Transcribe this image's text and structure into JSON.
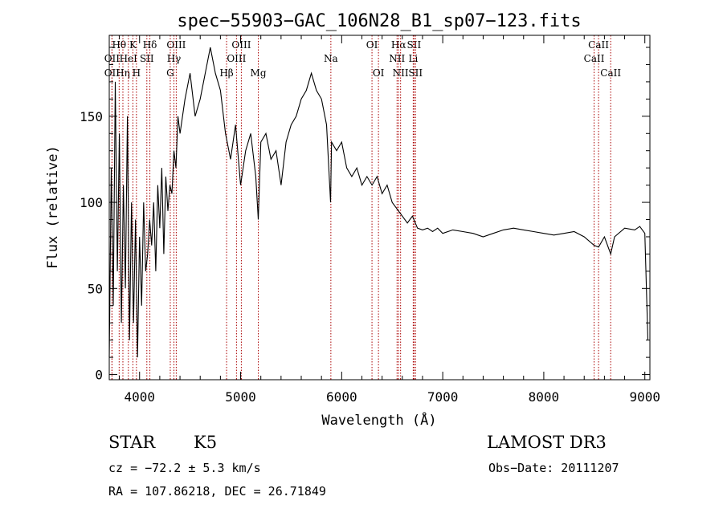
{
  "chart_data": {
    "type": "line",
    "title": "spec−55903−GAC_106N28_B1_sp07−123.fits",
    "xlabel": "Wavelength (Å)",
    "ylabel": "Flux (relative)",
    "xlim": [
      3700,
      9050
    ],
    "ylim": [
      -3,
      197
    ],
    "x_ticks": [
      4000,
      5000,
      6000,
      7000,
      8000,
      9000
    ],
    "y_ticks": [
      0,
      50,
      100,
      150
    ],
    "grid": false,
    "legend": "none",
    "line_color": "#000000",
    "marker_color": "#aa0000",
    "series": [
      {
        "x": [
          3700,
          3720,
          3740,
          3760,
          3780,
          3800,
          3820,
          3840,
          3860,
          3880,
          3900,
          3920,
          3940,
          3960,
          3980,
          4000,
          4020,
          4040,
          4060,
          4080,
          4100,
          4120,
          4140,
          4160,
          4180,
          4200,
          4220,
          4240,
          4260,
          4280,
          4300,
          4320,
          4340,
          4360,
          4380,
          4400,
          4450,
          4500,
          4550,
          4600,
          4650,
          4700,
          4750,
          4800,
          4850,
          4900,
          4950,
          5000,
          5050,
          5100,
          5150,
          5175,
          5200,
          5250,
          5300,
          5350,
          5400,
          5450,
          5500,
          5550,
          5600,
          5650,
          5700,
          5750,
          5800,
          5850,
          5890,
          5900,
          5950,
          6000,
          6050,
          6100,
          6150,
          6200,
          6250,
          6300,
          6350,
          6400,
          6450,
          6500,
          6563,
          6600,
          6650,
          6700,
          6750,
          6800,
          6850,
          6900,
          6950,
          7000,
          7100,
          7200,
          7300,
          7400,
          7500,
          7600,
          7700,
          7800,
          7900,
          8000,
          8100,
          8200,
          8300,
          8400,
          8498,
          8542,
          8600,
          8662,
          8700,
          8800,
          8900,
          8950,
          9000,
          9030
        ],
        "y": [
          10,
          120,
          40,
          170,
          60,
          140,
          30,
          110,
          50,
          150,
          20,
          100,
          30,
          90,
          10,
          80,
          40,
          100,
          60,
          70,
          90,
          75,
          100,
          60,
          110,
          85,
          120,
          70,
          115,
          95,
          110,
          105,
          130,
          120,
          150,
          140,
          160,
          175,
          150,
          160,
          175,
          190,
          175,
          165,
          140,
          125,
          145,
          110,
          130,
          140,
          115,
          90,
          135,
          140,
          125,
          130,
          110,
          135,
          145,
          150,
          160,
          165,
          175,
          165,
          160,
          145,
          100,
          135,
          130,
          135,
          120,
          115,
          120,
          110,
          115,
          110,
          115,
          105,
          110,
          100,
          95,
          92,
          88,
          92,
          85,
          84,
          85,
          83,
          85,
          82,
          84,
          83,
          82,
          80,
          82,
          84,
          85,
          84,
          83,
          82,
          81,
          82,
          83,
          80,
          75,
          74,
          80,
          70,
          80,
          85,
          84,
          86,
          82,
          20
        ],
        "name": ""
      }
    ],
    "spectral_lines": [
      {
        "label": "Hθ",
        "wave": 3798,
        "row": 1
      },
      {
        "label": "OII",
        "wave": 3727,
        "row": 2
      },
      {
        "label": "OII",
        "wave": 3727,
        "row": 3
      },
      {
        "label": "Hη",
        "wave": 3835,
        "row": 3
      },
      {
        "label": "HeI",
        "wave": 3889,
        "row": 2
      },
      {
        "label": "K",
        "wave": 3934,
        "row": 1
      },
      {
        "label": "H",
        "wave": 3969,
        "row": 3
      },
      {
        "label": "SII",
        "wave": 4072,
        "row": 2
      },
      {
        "label": "Hδ",
        "wave": 4102,
        "row": 1
      },
      {
        "label": "OIII",
        "wave": 4363,
        "row": 1
      },
      {
        "label": "Hγ",
        "wave": 4340,
        "row": 2
      },
      {
        "label": "G",
        "wave": 4304,
        "row": 3
      },
      {
        "label": "Hβ",
        "wave": 4861,
        "row": 3
      },
      {
        "label": "OIII",
        "wave": 5007,
        "row": 1
      },
      {
        "label": "OIII",
        "wave": 4959,
        "row": 2
      },
      {
        "label": "Mg",
        "wave": 5175,
        "row": 3
      },
      {
        "label": "Na",
        "wave": 5893,
        "row": 2
      },
      {
        "label": "OI",
        "wave": 6300,
        "row": 1
      },
      {
        "label": "OI",
        "wave": 6364,
        "row": 3
      },
      {
        "label": "Hα",
        "wave": 6563,
        "row": 1
      },
      {
        "label": "NII",
        "wave": 6548,
        "row": 2
      },
      {
        "label": "NII",
        "wave": 6583,
        "row": 3
      },
      {
        "label": "SII",
        "wave": 6716,
        "row": 1
      },
      {
        "label": "Li",
        "wave": 6708,
        "row": 2
      },
      {
        "label": "SII",
        "wave": 6731,
        "row": 3
      },
      {
        "label": "CaII",
        "wave": 8542,
        "row": 1
      },
      {
        "label": "CaII",
        "wave": 8498,
        "row": 2
      },
      {
        "label": "CaII",
        "wave": 8662,
        "row": 3
      }
    ]
  },
  "info": {
    "class": "STAR",
    "subclass": "K5",
    "survey": "LAMOST DR3",
    "cz": "cz = −72.2 ± 5.3 km/s",
    "obs_date": "Obs−Date: 20111207",
    "coords": "RA = 107.86218, DEC =  26.71849"
  }
}
